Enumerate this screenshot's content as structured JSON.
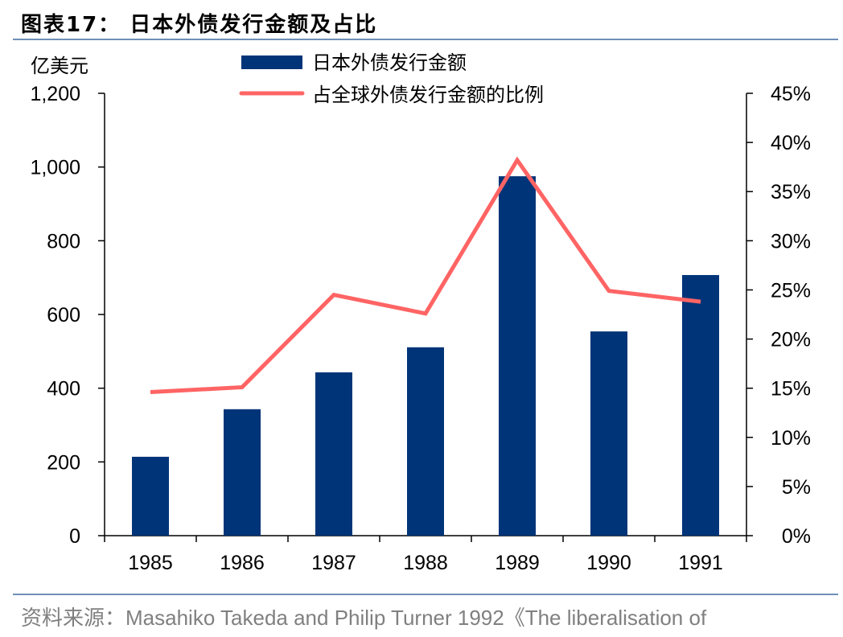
{
  "title": "图表17：  日本外债发行金额及占比",
  "source": "资料来源：Masahiko Takeda and Philip Turner 1992《The liberalisation of",
  "chart_data": {
    "type": "bar+line",
    "categories": [
      "1985",
      "1986",
      "1987",
      "1988",
      "1989",
      "1990",
      "1991"
    ],
    "ylabel_left": "亿美元",
    "ylim_left": [
      0,
      1200
    ],
    "yticks_left": [
      "0",
      "200",
      "400",
      "600",
      "800",
      "1,000",
      "1,200"
    ],
    "ylim_right": [
      0,
      45
    ],
    "yticks_right": [
      "0%",
      "5%",
      "10%",
      "15%",
      "20%",
      "25%",
      "30%",
      "35%",
      "40%",
      "45%"
    ],
    "legend_placement": "top",
    "grid": false,
    "series": [
      {
        "name": "日本外债发行金额",
        "type": "bar",
        "axis": "left",
        "color": "#003478",
        "values": [
          214,
          343,
          443,
          511,
          975,
          554,
          707
        ]
      },
      {
        "name": "占全球外债发行金额的比例",
        "type": "line",
        "axis": "right",
        "color": "#ff6464",
        "values": [
          14.6,
          15.1,
          24.5,
          22.6,
          38.2,
          24.9,
          23.8
        ]
      }
    ]
  }
}
